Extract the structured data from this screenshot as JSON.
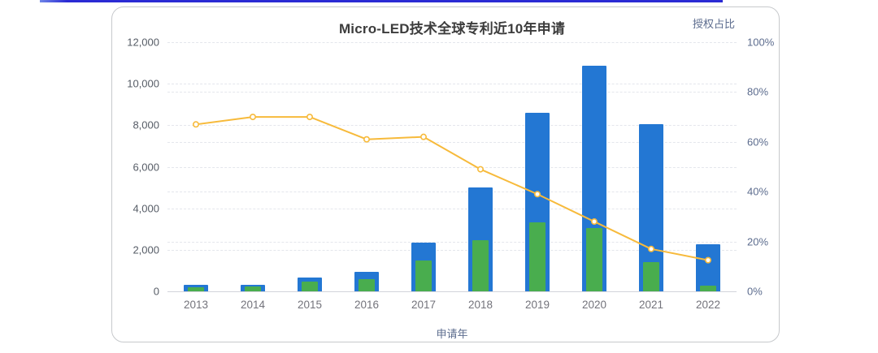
{
  "page": {
    "top_accent_color": "#2b2bd4"
  },
  "colors": {
    "bar_blue": "#2377d3",
    "bar_green": "#49ad4e",
    "line_yellow": "#f7ba3b",
    "card_border": "#c7c9cc",
    "gridline": "#e4e6ec"
  },
  "chart_data": {
    "type": "bar",
    "subtype": "bar+line combo, dual y-axis",
    "title": "Micro-LED技术全球专利近10年申请",
    "x_axis_title": "申请年",
    "right_axis_title": "授权占比",
    "categories": [
      "2013",
      "2014",
      "2015",
      "2016",
      "2017",
      "2018",
      "2019",
      "2020",
      "2021",
      "2022"
    ],
    "series": [
      {
        "id": "applications-total-bar",
        "type": "bar",
        "axis": "left",
        "color": "#2377d3",
        "values": [
          300,
          330,
          650,
          950,
          2350,
          5000,
          8600,
          10850,
          8050,
          2250
        ]
      },
      {
        "id": "applications-granted-bar",
        "type": "bar",
        "axis": "left",
        "color": "#49ad4e",
        "values": [
          200,
          230,
          455,
          590,
          1480,
          2470,
          3320,
          3040,
          1400,
          280
        ]
      },
      {
        "id": "grant-ratio-line",
        "type": "line",
        "axis": "right",
        "color": "#f7ba3b",
        "values": [
          67,
          70,
          70,
          61,
          62,
          49,
          39,
          28,
          17,
          12.5
        ]
      }
    ],
    "left_axis": {
      "min": 0,
      "max": 12000,
      "tick_labels": [
        "0",
        "2,000",
        "4,000",
        "6,000",
        "8,000",
        "10,000",
        "12,000"
      ]
    },
    "right_axis": {
      "min": 0,
      "max": 100,
      "tick_labels": [
        "0%",
        "20%",
        "40%",
        "60%",
        "80%",
        "100%"
      ]
    },
    "grid": "dashed, both axes (staggered)",
    "legend": "none"
  }
}
